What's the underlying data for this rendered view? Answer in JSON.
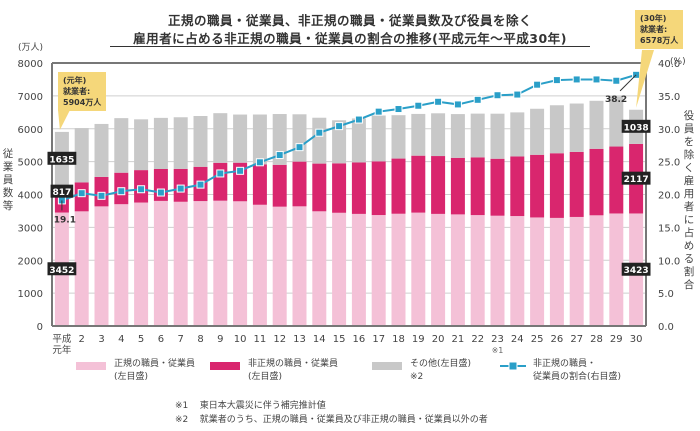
{
  "chart_data": {
    "type": "bar",
    "subtype": "stacked-bar-with-line",
    "title": [
      "正規の職員・従業員、非正規の職員・従業員数及び役員を除く",
      "雇用者に占める非正規の職員・従業員の割合の推移(平成元年～平成30年)"
    ],
    "ylabel_left": "従業員数等",
    "ylabel_right": "役員を除く雇用者に占める割合",
    "unit_left": "(万人)",
    "unit_right": "(%)",
    "ylim_left": [
      0,
      8000
    ],
    "yticks_left": [
      0,
      1000,
      2000,
      3000,
      4000,
      5000,
      6000,
      7000,
      8000
    ],
    "ylim_right": [
      0,
      40
    ],
    "yticks_right": [
      "0.0",
      "5.0",
      "10.0",
      "15.0",
      "20.0",
      "25.0",
      "30.0",
      "35.0",
      "40.0"
    ],
    "grid": true,
    "categories": [
      "平成元年",
      "2",
      "3",
      "4",
      "5",
      "6",
      "7",
      "8",
      "9",
      "10",
      "11",
      "12",
      "13",
      "14",
      "15",
      "16",
      "17",
      "18",
      "19",
      "20",
      "21",
      "22",
      "23",
      "24",
      "25",
      "26",
      "27",
      "28",
      "29",
      "30"
    ],
    "category_notes": {
      "23": "※1"
    },
    "series": [
      {
        "name": "正規の職員・従業員(左目盛)",
        "axis": "left",
        "color": "#f4c1d7",
        "values": [
          3452,
          3488,
          3639,
          3705,
          3756,
          3805,
          3779,
          3800,
          3812,
          3794,
          3688,
          3630,
          3640,
          3489,
          3444,
          3410,
          3375,
          3415,
          3449,
          3410,
          3395,
          3374,
          3355,
          3345,
          3302,
          3288,
          3317,
          3367,
          3423,
          3423
        ]
      },
      {
        "name": "非正規の職員・従業員(左目盛)",
        "axis": "left",
        "color": "#d9266e",
        "values": [
          817,
          881,
          897,
          958,
          986,
          971,
          1001,
          1043,
          1152,
          1173,
          1225,
          1273,
          1360,
          1451,
          1504,
          1564,
          1633,
          1678,
          1732,
          1760,
          1721,
          1756,
          1733,
          1813,
          1906,
          1967,
          1980,
          2023,
          2036,
          2117
        ]
      },
      {
        "name": "その他(左目盛)※2",
        "axis": "left",
        "color": "#c8c8c8",
        "values": [
          1635,
          1652,
          1610,
          1660,
          1545,
          1555,
          1570,
          1545,
          1510,
          1465,
          1520,
          1545,
          1440,
          1395,
          1310,
          1340,
          1395,
          1320,
          1270,
          1300,
          1330,
          1330,
          1370,
          1340,
          1400,
          1460,
          1470,
          1460,
          1520,
          1038
        ]
      },
      {
        "name": "非正規の職員・従業員の割合(右目盛)",
        "axis": "right",
        "type": "line",
        "color": "#2a9fc8",
        "values": [
          19.1,
          20.2,
          19.8,
          20.5,
          20.8,
          20.3,
          20.9,
          21.5,
          23.2,
          23.6,
          24.9,
          26.0,
          27.2,
          29.4,
          30.4,
          31.4,
          32.6,
          33.0,
          33.5,
          34.1,
          33.7,
          34.4,
          35.1,
          35.2,
          36.7,
          37.4,
          37.5,
          37.5,
          37.3,
          38.2
        ]
      }
    ],
    "data_labels": {
      "first": {
        "regular": "3452",
        "nonregular": "817",
        "other": "1635",
        "ratio": "19.1"
      },
      "last": {
        "regular": "3423",
        "nonregular": "2117",
        "other": "1038",
        "ratio": "38.2"
      }
    },
    "annotations": [
      {
        "year": "(元年)",
        "label": "就業者:",
        "value": "5904万人"
      },
      {
        "year": "(30年)",
        "label": "就業者:",
        "value": "6578万人"
      }
    ],
    "legend": [
      {
        "line1": "正規の職員・従業員",
        "line2": "(左目盛)"
      },
      {
        "line1": "非正規の職員・従業員",
        "line2": "(左目盛)"
      },
      {
        "line1": "その他(左目盛)",
        "line2": "※2"
      },
      {
        "line1": "非正規の職員・",
        "line2": "従業員の割合(右目盛)"
      }
    ],
    "footnotes": [
      {
        "mark": "※1",
        "text": "東日本大震災に伴う補完推計値"
      },
      {
        "mark": "※2",
        "text": "就業者のうち、正規の職員・従業員及び非正規の職員・従業員以外の者"
      }
    ]
  }
}
